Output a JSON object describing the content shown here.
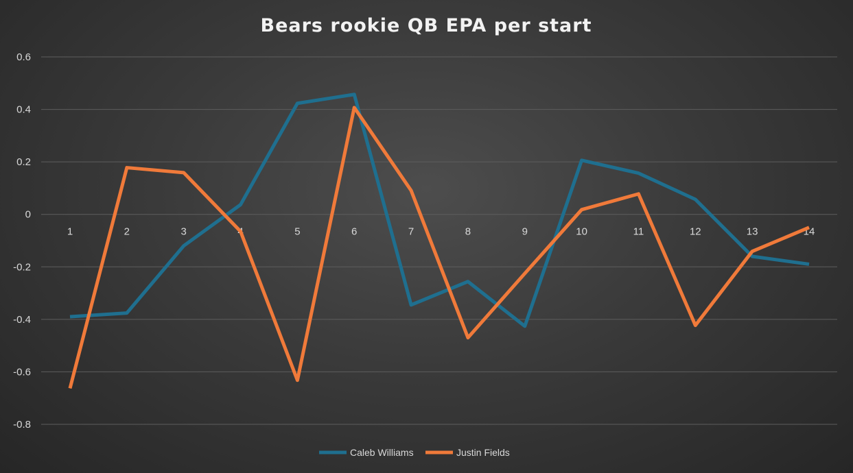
{
  "chart_data": {
    "type": "line",
    "title": "Bears rookie QB EPA per start",
    "xlabel": "",
    "ylabel": "",
    "categories": [
      "1",
      "2",
      "3",
      "4",
      "5",
      "6",
      "7",
      "8",
      "9",
      "10",
      "11",
      "12",
      "13",
      "14"
    ],
    "y_ticks": [
      "0.6",
      "0.4",
      "0.2",
      "0",
      "-0.2",
      "-0.4",
      "-0.6",
      "-0.8"
    ],
    "ylim": [
      -0.8,
      0.6
    ],
    "grid": true,
    "legend_position": "bottom",
    "series": [
      {
        "name": "Caleb Williams",
        "color": "#1f6f8f",
        "values": [
          -0.39,
          -0.376,
          -0.12,
          0.037,
          0.423,
          0.457,
          -0.345,
          -0.256,
          -0.426,
          0.206,
          0.157,
          0.057,
          -0.16,
          -0.19
        ]
      },
      {
        "name": "Justin Fields",
        "color": "#f07a3a",
        "values": [
          -0.663,
          0.178,
          0.159,
          -0.065,
          -0.632,
          0.407,
          0.091,
          -0.47,
          -0.225,
          0.018,
          0.078,
          -0.423,
          -0.141,
          -0.05
        ]
      }
    ]
  }
}
